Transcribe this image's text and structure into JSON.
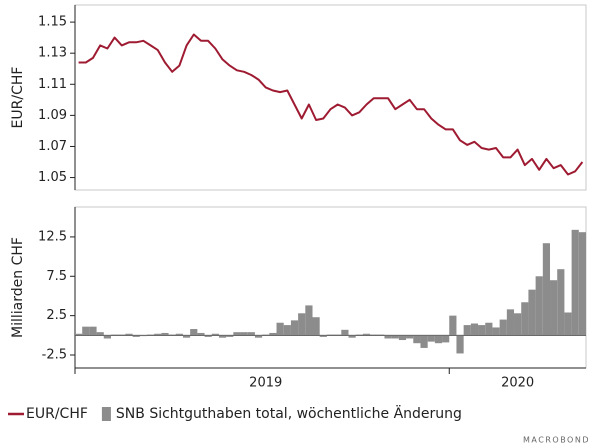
{
  "chart_data": [
    {
      "type": "line",
      "ylabel": "EUR/CHF",
      "ylim": [
        1.042,
        1.161
      ],
      "yticks": [
        1.05,
        1.07,
        1.09,
        1.11,
        1.13,
        1.15
      ],
      "series": [
        {
          "name": "EUR/CHF",
          "color": "#9e1b32",
          "values": [
            1.124,
            1.124,
            1.127,
            1.135,
            1.133,
            1.14,
            1.135,
            1.137,
            1.137,
            1.138,
            1.135,
            1.132,
            1.124,
            1.118,
            1.122,
            1.135,
            1.142,
            1.138,
            1.138,
            1.133,
            1.126,
            1.122,
            1.119,
            1.118,
            1.116,
            1.113,
            1.108,
            1.106,
            1.105,
            1.106,
            1.097,
            1.088,
            1.097,
            1.087,
            1.088,
            1.094,
            1.097,
            1.095,
            1.09,
            1.092,
            1.097,
            1.101,
            1.101,
            1.101,
            1.094,
            1.097,
            1.1,
            1.094,
            1.094,
            1.088,
            1.084,
            1.081,
            1.081,
            1.074,
            1.071,
            1.073,
            1.069,
            1.068,
            1.069,
            1.063,
            1.063,
            1.068,
            1.058,
            1.062,
            1.055,
            1.062,
            1.056,
            1.058,
            1.052,
            1.054,
            1.06
          ]
        }
      ]
    },
    {
      "type": "bar",
      "ylabel": "Milliarden CHF",
      "ylim": [
        -4.15,
        16.3
      ],
      "yticks": [
        -2.5,
        2.5,
        7.5,
        12.5
      ],
      "categories": [
        null,
        null,
        null,
        null,
        null,
        null,
        null,
        null,
        null,
        null,
        null,
        null,
        null,
        null,
        null,
        null,
        null,
        null,
        null,
        null,
        null,
        null,
        null,
        null,
        null,
        null,
        "2019",
        null,
        null,
        null,
        null,
        null,
        null,
        null,
        null,
        null,
        null,
        null,
        null,
        null,
        null,
        null,
        null,
        null,
        null,
        null,
        null,
        null,
        null,
        null,
        null,
        null,
        null,
        null,
        null,
        null,
        null,
        null,
        null,
        null,
        null,
        "2020",
        null,
        null,
        null,
        null,
        null,
        null,
        null,
        null,
        null
      ],
      "series": [
        {
          "name": "SNB Sichtguthaben total, wöchentliche Änderung",
          "color": "#8c8c8c",
          "values": [
            0.2,
            1.1,
            1.1,
            0.4,
            -0.4,
            0.1,
            0.1,
            0.2,
            -0.2,
            -0.1,
            0.1,
            0.2,
            0.3,
            0.1,
            0.2,
            -0.3,
            0.8,
            0.3,
            -0.2,
            0.2,
            -0.3,
            -0.2,
            0.4,
            0.4,
            0.4,
            -0.3,
            0.1,
            0.3,
            1.6,
            1.3,
            1.9,
            2.8,
            3.8,
            2.3,
            -0.2,
            0.1,
            0.1,
            0.7,
            -0.3,
            0.1,
            0.2,
            0.1,
            0.1,
            -0.4,
            -0.4,
            -0.6,
            -0.4,
            -1.0,
            -1.6,
            -0.8,
            -1.0,
            -0.9,
            2.5,
            -2.3,
            1.3,
            1.5,
            1.3,
            1.6,
            1.0,
            2.0,
            3.3,
            2.8,
            4.2,
            5.8,
            7.5,
            11.7,
            7.0,
            8.4,
            2.9,
            13.4,
            13.1
          ]
        }
      ]
    }
  ],
  "source": "MACROBOND"
}
